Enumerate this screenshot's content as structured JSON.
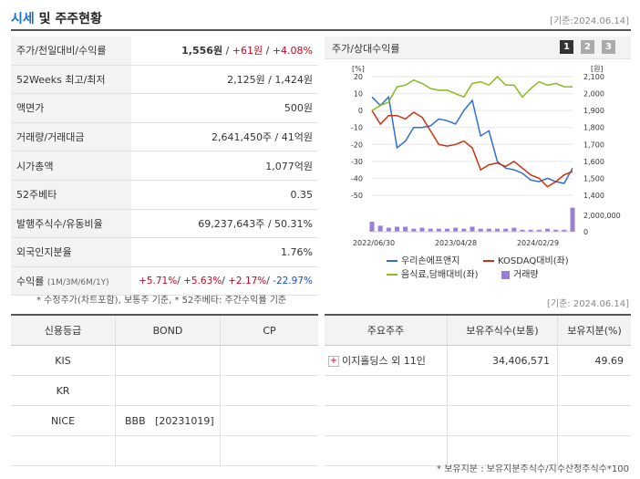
{
  "header": {
    "title_main": "시세",
    "title_rest": "및 주주현황",
    "date": "[기준:2024.06.14]"
  },
  "stats": [
    {
      "label": "주가/전일대비/수익률",
      "price": "1,556원",
      "sep1": " / ",
      "change": "+61원",
      "sep2": " / ",
      "rate": "+4.08%"
    },
    {
      "label": "52Weeks 최고/최저",
      "value": "2,125원 / 1,424원"
    },
    {
      "label": "액면가",
      "value": "500원"
    },
    {
      "label": "거래량/거래대금",
      "value": "2,641,450주 / 41억원"
    },
    {
      "label": "시가총액",
      "value": "1,077억원"
    },
    {
      "label": "52주베타",
      "value": "0.35"
    },
    {
      "label": "발행주식수/유동비율",
      "value": "69,237,643주 / 50.31%"
    },
    {
      "label": "외국인지분율",
      "value": "1.76%"
    },
    {
      "label": "수익률",
      "sublabel": "(1M/3M/6M/1Y)",
      "r1": "+5.71%",
      "r2": "+5.63%",
      "r3": "+2.17%",
      "r4": "-22.97%"
    }
  ],
  "stat_note": "* 수정주가(차트포함), 보통주 기준, * 52주베타: 주간수익률 기준",
  "chart": {
    "title": "주가/상대수익률",
    "period_buttons": [
      "1",
      "2",
      "3"
    ],
    "active_button": "1",
    "left_unit": "[%]",
    "right_unit": "[원]",
    "volume_label": "2,000,000",
    "volume_zero": "0"
  },
  "chart_data": {
    "type": "line",
    "x_ticks": [
      "2022/06/30",
      "2023/04/28",
      "2024/02/29"
    ],
    "y_left_ticks": [
      "20",
      "10",
      "0",
      "-10",
      "-20",
      "-30",
      "-40",
      "-50"
    ],
    "y_right_ticks": [
      "2,100",
      "2,000",
      "1,900",
      "1,800",
      "1,700",
      "1,600",
      "1,500",
      "1,400"
    ],
    "ylim_left": [
      -50,
      20
    ],
    "series": [
      {
        "name": "우리손에프앤지",
        "color": "#2f6fd0",
        "values": [
          8,
          3,
          8,
          -22,
          -18,
          -10,
          -10,
          -9,
          -5,
          -6,
          -8,
          0,
          6,
          -15,
          -12,
          -30,
          -34,
          -35,
          -37,
          -41,
          -42,
          -40,
          -42,
          -43,
          -34
        ]
      },
      {
        "name": "KOSDAQ대비(좌)",
        "color": "#cc3311",
        "values": [
          0,
          -8,
          -3,
          -3,
          -5,
          -1,
          -4,
          -12,
          -20,
          -21,
          -20,
          -18,
          -22,
          -35,
          -32,
          -31,
          -33,
          -30,
          -34,
          -38,
          -40,
          -45,
          -42,
          -38,
          -36
        ]
      },
      {
        "name": "음식료,담배대비(좌)",
        "color": "#88bb22",
        "values": [
          0,
          3,
          5,
          14,
          15,
          18,
          16,
          13,
          12,
          12,
          10,
          8,
          16,
          17,
          15,
          20,
          15,
          15,
          8,
          13,
          17,
          15,
          16,
          14,
          14
        ]
      }
    ],
    "volume": {
      "name": "거래량",
      "color": "#9b7fd6",
      "values": [
        0.5,
        0.3,
        0.2,
        0.25,
        0.25,
        0.15,
        0.2,
        0.15,
        0.15,
        0.15,
        0.2,
        0.15,
        0.25,
        0.15,
        0.15,
        0.15,
        0.15,
        0.2,
        0.1,
        0.1,
        0.1,
        0.15,
        0.1,
        0.1,
        1.2
      ],
      "ylim": [
        0,
        2000000
      ]
    }
  },
  "chart_note": "[기준: 2024.06.14]",
  "credit": {
    "headers": [
      "신용등급",
      "BOND",
      "CP"
    ],
    "rows": [
      [
        "KIS",
        "",
        ""
      ],
      [
        "KR",
        "",
        ""
      ],
      [
        "NICE",
        "BBB   [20231019]",
        ""
      ],
      [
        "",
        "",
        ""
      ]
    ]
  },
  "holders": {
    "headers": [
      "주요주주",
      "보유주식수(보통)",
      "보유지분(%)"
    ],
    "rows": [
      {
        "name": "이지홀딩스 외 11인",
        "shares": "34,406,571",
        "pct": "49.69"
      }
    ],
    "expand_icon": "plus-icon"
  },
  "holders_note": "* 보유지분 : 보유지분주식수/지수산정주식수*100"
}
